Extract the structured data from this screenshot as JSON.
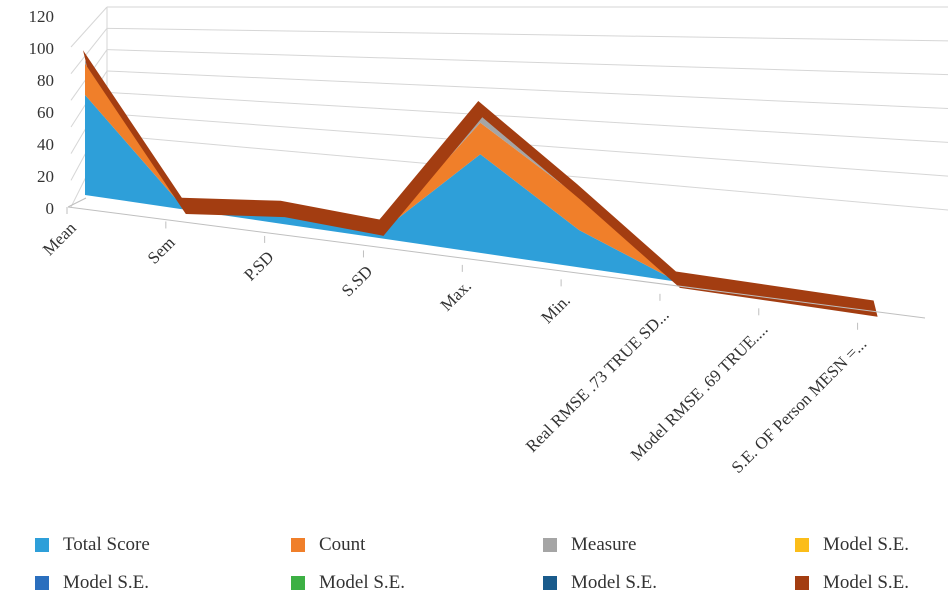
{
  "chart_data": {
    "type": "area",
    "title": "",
    "xlabel": "",
    "ylabel": "",
    "ylim": [
      0,
      120
    ],
    "yticks": [
      0,
      20,
      40,
      60,
      80,
      100,
      120
    ],
    "categories": [
      "Mean",
      "Sem",
      "P.SD",
      "S.SD",
      "Max.",
      "Min.",
      "Real RMSE .73 TRUE SD...",
      "Model RMSE .69 TRUE....",
      "S.E. OF Person MESN =..."
    ],
    "grid": true,
    "stacked": true,
    "legend_position": "bottom",
    "series": [
      {
        "name": "Total Score",
        "color": "#2e9fd9",
        "values": [
          70,
          1,
          7,
          5,
          69,
          26,
          0,
          0,
          0
        ]
      },
      {
        "name": "Count",
        "color": "#f07f2a",
        "values": [
          22,
          0,
          1,
          0,
          22,
          23,
          0,
          0,
          0
        ]
      },
      {
        "name": "Measure",
        "color": "#a5a5a5",
        "values": [
          2,
          0,
          1,
          1,
          6,
          0,
          0,
          0,
          0
        ]
      },
      {
        "name": "Model S.E.",
        "color": "#fbbd19",
        "values": [
          0,
          0,
          0,
          0,
          2,
          2,
          0,
          0,
          0
        ]
      },
      {
        "name": "Model S.E.",
        "color": "#2b6fbe",
        "values": [
          0,
          0,
          0,
          0,
          0,
          0,
          0,
          0,
          0
        ]
      },
      {
        "name": "Model S.E.",
        "color": "#3cb044",
        "values": [
          0,
          0,
          0,
          0,
          0,
          0,
          0,
          0,
          0
        ]
      },
      {
        "name": "Model S.E.",
        "color": "#1a5b8c",
        "values": [
          0,
          0,
          0,
          0,
          0,
          0,
          0,
          0,
          0
        ]
      },
      {
        "name": "Model S.E.",
        "color": "#a33d11",
        "values": [
          3,
          3,
          3,
          3,
          3,
          3,
          3,
          3,
          3
        ]
      }
    ]
  }
}
